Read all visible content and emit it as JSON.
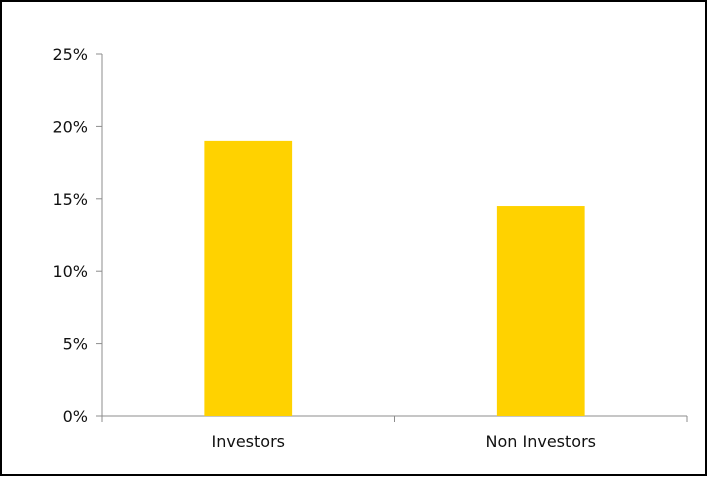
{
  "chart_data": {
    "type": "bar",
    "title": "",
    "xlabel": "",
    "ylabel": "",
    "categories": [
      "Investors",
      "Non Investors"
    ],
    "values": [
      0.19,
      0.145
    ],
    "ylim": [
      0,
      0.25
    ],
    "yticks": [
      0,
      0.05,
      0.1,
      0.15,
      0.2,
      0.25
    ],
    "ytick_labels": [
      "0%",
      "5%",
      "10%",
      "15%",
      "20%",
      "25%"
    ],
    "grid": false,
    "legend": "none",
    "bar_color": "#FFD200",
    "axis_color": "#8c8c8c"
  }
}
